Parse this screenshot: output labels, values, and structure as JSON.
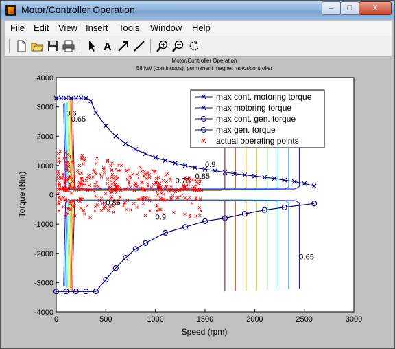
{
  "window": {
    "title": "Motor/Controller Operation",
    "controls": {
      "minimize": "–",
      "maximize": "□",
      "close": "X"
    }
  },
  "menu": [
    "File",
    "Edit",
    "View",
    "Insert",
    "Tools",
    "Window",
    "Help"
  ],
  "toolbar": [
    {
      "name": "new-figure-icon"
    },
    {
      "name": "open-file-icon"
    },
    {
      "name": "save-icon"
    },
    {
      "name": "print-icon"
    },
    {
      "name": "edit-plot-arrow-icon"
    },
    {
      "name": "insert-text-icon"
    },
    {
      "name": "insert-arrow-icon"
    },
    {
      "name": "insert-line-icon"
    },
    {
      "name": "zoom-in-icon"
    },
    {
      "name": "zoom-out-icon"
    },
    {
      "name": "rotate-3d-icon"
    }
  ],
  "colors": {
    "motoring": "#00008b",
    "operating_points": "#ff0000",
    "contour_levels": [
      "#8b0000",
      "#ff4500",
      "#ffa500",
      "#dcdc00",
      "#7fff7f",
      "#00ffff",
      "#1e90ff",
      "#0000ff"
    ]
  },
  "chart_data": {
    "type": "line",
    "title": "Motor/Controller Operation",
    "subtitle": "58 kW (continuous), permanent magnet motor/controller",
    "xlabel": "Speed (rpm)",
    "ylabel": "Torque (Nm)",
    "xlim": [
      0,
      3000
    ],
    "ylim": [
      -4000,
      4000
    ],
    "xticks": [
      "0",
      "500",
      "1000",
      "1500",
      "2000",
      "2500",
      "3000"
    ],
    "yticks": [
      "4000",
      "3000",
      "2000",
      "1000",
      "0",
      "-1000",
      "-2000",
      "-3000",
      "-4000"
    ],
    "legend_position": "top-right",
    "series": [
      {
        "name": "max cont. motoring torque",
        "marker": "x",
        "x": [
          0,
          50,
          100,
          150,
          200,
          250,
          300,
          350,
          400,
          500,
          600,
          700,
          800,
          900,
          1000,
          1100,
          1200,
          1300,
          1400,
          1500,
          1600,
          1700,
          1800,
          1900,
          2000,
          2100,
          2200,
          2300,
          2400,
          2500,
          2600
        ],
        "y": [
          3300,
          3300,
          3300,
          3300,
          3300,
          3300,
          3300,
          3200,
          2800,
          2350,
          2000,
          1750,
          1550,
          1400,
          1270,
          1170,
          1080,
          1000,
          930,
          870,
          820,
          770,
          720,
          680,
          640,
          600,
          560,
          500,
          450,
          380,
          300
        ]
      },
      {
        "name": "max motoring torque",
        "marker": "x",
        "x": [
          0,
          50,
          100,
          150,
          200,
          250,
          300,
          350,
          400,
          500,
          600,
          700,
          800,
          900,
          1000,
          1100,
          1200,
          1300,
          1400,
          1500,
          1600,
          1700,
          1800,
          1900,
          2000,
          2100,
          2200,
          2300,
          2400,
          2500,
          2600
        ],
        "y": [
          3300,
          3300,
          3300,
          3300,
          3300,
          3300,
          3300,
          3200,
          2800,
          2350,
          2000,
          1750,
          1550,
          1400,
          1270,
          1170,
          1080,
          1000,
          930,
          870,
          820,
          770,
          720,
          680,
          640,
          600,
          560,
          500,
          450,
          380,
          300
        ]
      },
      {
        "name": "max cont. gen. torque",
        "marker": "o",
        "x": [
          0,
          100,
          200,
          300,
          400,
          500,
          600,
          700,
          800,
          900,
          1100,
          1300,
          1500,
          1700,
          1900,
          2100,
          2300,
          2600
        ],
        "y": [
          -3300,
          -3300,
          -3300,
          -3300,
          -3300,
          -2900,
          -2500,
          -2150,
          -1850,
          -1650,
          -1300,
          -1100,
          -900,
          -800,
          -650,
          -520,
          -430,
          -300
        ]
      },
      {
        "name": "max gen. torque",
        "marker": "o",
        "x": [
          0,
          100,
          200,
          300,
          400,
          500,
          600,
          700,
          800,
          900,
          1100,
          1300,
          1500,
          1700,
          1900,
          2100,
          2300,
          2600
        ],
        "y": [
          -3300,
          -3300,
          -3300,
          -3300,
          -3300,
          -2900,
          -2500,
          -2150,
          -1850,
          -1650,
          -1300,
          -1100,
          -900,
          -800,
          -650,
          -520,
          -430,
          -300
        ]
      },
      {
        "name": "actual operating points",
        "marker": "x",
        "style": "scatter"
      }
    ],
    "annotations": [
      {
        "text": "0.6",
        "x": 100,
        "y": 2700
      },
      {
        "text": "0.65",
        "x": 150,
        "y": 2500
      },
      {
        "text": "0.9",
        "x": 1500,
        "y": 950
      },
      {
        "text": "0.75",
        "x": 1200,
        "y": 400
      },
      {
        "text": "0.85",
        "x": 1400,
        "y": 550
      },
      {
        "text": "0.85",
        "x": 500,
        "y": -350
      },
      {
        "text": "0.9",
        "x": 1000,
        "y": -850
      },
      {
        "text": "0.65",
        "x": 2450,
        "y": -2200
      }
    ]
  }
}
